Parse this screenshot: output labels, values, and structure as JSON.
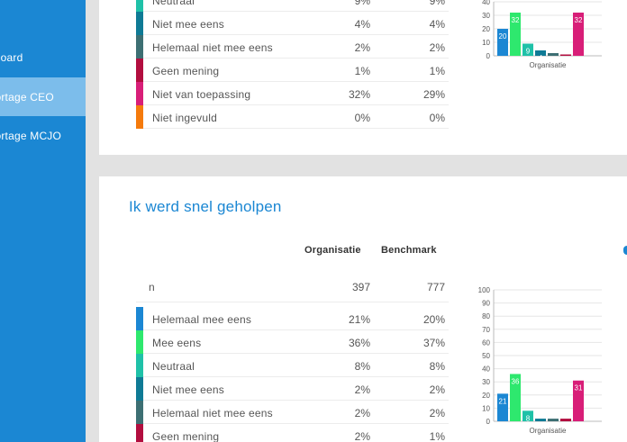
{
  "sidebar": {
    "items": [
      {
        "label": "Dashboard",
        "active": false
      },
      {
        "label": "Rapportage CEO",
        "active": true
      },
      {
        "label": "Rapportage MCJO",
        "active": false
      }
    ]
  },
  "colors": {
    "helemaal_mee_eens": "#1b87d3",
    "mee_eens": "#2ee86e",
    "neutraal": "#1fc1a8",
    "niet_mee_eens": "#0f7a95",
    "helemaal_niet_mee_eens": "#3d6f73",
    "geen_mening": "#b20e3f",
    "niet_van_toepassing": "#d81e78",
    "niet_ingevuld": "#f57a0c"
  },
  "card1": {
    "rows": [
      {
        "label": "Neutraal",
        "org": "9%",
        "bench": "9%",
        "color_key": "neutraal"
      },
      {
        "label": "Niet mee eens",
        "org": "4%",
        "bench": "4%",
        "color_key": "niet_mee_eens"
      },
      {
        "label": "Helemaal niet mee eens",
        "org": "2%",
        "bench": "2%",
        "color_key": "helemaal_niet_mee_eens"
      },
      {
        "label": "Geen mening",
        "org": "1%",
        "bench": "1%",
        "color_key": "geen_mening"
      },
      {
        "label": "Niet van toepassing",
        "org": "32%",
        "bench": "29%",
        "color_key": "niet_van_toepassing"
      },
      {
        "label": "Niet ingevuld",
        "org": "0%",
        "bench": "0%",
        "color_key": "niet_ingevuld"
      }
    ]
  },
  "card2": {
    "title": "Ik werd snel geholpen",
    "col_org": "Organisatie",
    "col_bench": "Benchmark",
    "n_label": "n",
    "n_org": "397",
    "n_bench": "777",
    "rows": [
      {
        "label": "Helemaal mee eens",
        "org": "21%",
        "bench": "20%",
        "color_key": "helemaal_mee_eens"
      },
      {
        "label": "Mee eens",
        "org": "36%",
        "bench": "37%",
        "color_key": "mee_eens"
      },
      {
        "label": "Neutraal",
        "org": "8%",
        "bench": "8%",
        "color_key": "neutraal"
      },
      {
        "label": "Niet mee eens",
        "org": "2%",
        "bench": "2%",
        "color_key": "niet_mee_eens"
      },
      {
        "label": "Helemaal niet mee eens",
        "org": "2%",
        "bench": "2%",
        "color_key": "helemaal_niet_mee_eens"
      },
      {
        "label": "Geen mening",
        "org": "2%",
        "bench": "1%",
        "color_key": "geen_mening"
      }
    ]
  },
  "chart_data": [
    {
      "type": "bar",
      "xlabel": "Organisatie",
      "ylim": [
        0,
        40
      ],
      "yticks": [
        "0",
        "10",
        "20",
        "30",
        "40"
      ],
      "values": [
        20,
        32,
        9,
        4,
        2,
        1,
        32,
        0
      ],
      "data_labels": [
        "20",
        "32",
        "9",
        "4",
        "2",
        "1",
        "32",
        ""
      ],
      "color_keys": [
        "helemaal_mee_eens",
        "mee_eens",
        "neutraal",
        "niet_mee_eens",
        "helemaal_niet_mee_eens",
        "geen_mening",
        "niet_van_toepassing",
        "niet_ingevuld"
      ]
    },
    {
      "type": "bar",
      "xlabel": "Organisatie",
      "ylim": [
        0,
        100
      ],
      "yticks": [
        "0",
        "10",
        "20",
        "30",
        "40",
        "50",
        "60",
        "70",
        "80",
        "90",
        "100"
      ],
      "values": [
        21,
        36,
        8,
        2,
        2,
        2,
        31,
        0
      ],
      "data_labels": [
        "21",
        "36",
        "8",
        "",
        "",
        "",
        "31",
        ""
      ],
      "color_keys": [
        "helemaal_mee_eens",
        "mee_eens",
        "neutraal",
        "niet_mee_eens",
        "helemaal_niet_mee_eens",
        "geen_mening",
        "niet_van_toepassing",
        "niet_ingevuld"
      ]
    }
  ]
}
